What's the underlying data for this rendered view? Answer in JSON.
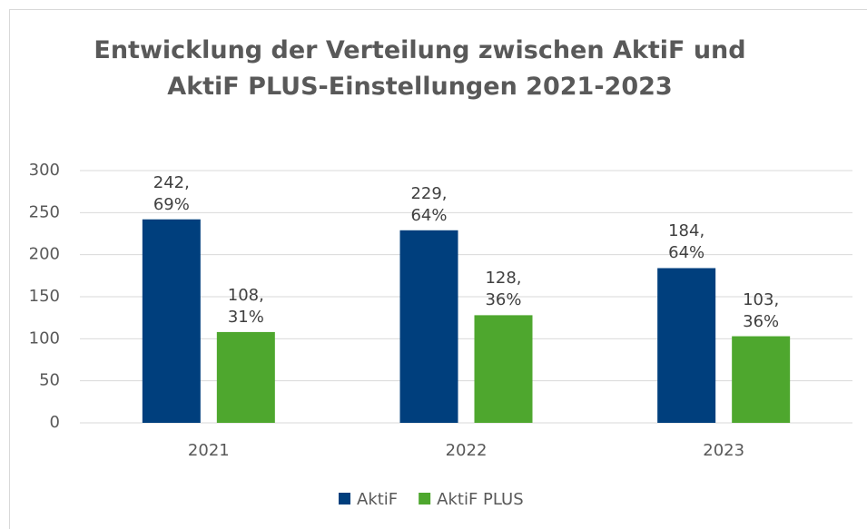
{
  "chart_data": {
    "type": "bar",
    "title": "Entwicklung der Verteilung zwischen AktiF und AktiF PLUS-Einstellungen 2021-2023",
    "categories": [
      "2021",
      "2022",
      "2023"
    ],
    "series": [
      {
        "name": "AktiF",
        "color": "#003f7d",
        "values": [
          242,
          229,
          184
        ],
        "value_labels": [
          "242,\n69%",
          "229,\n64%",
          "184,\n64%"
        ]
      },
      {
        "name": "AktiF PLUS",
        "color": "#4ea72e",
        "values": [
          108,
          128,
          103
        ],
        "value_labels": [
          "108,\n31%",
          "128,\n36%",
          "103,\n36%"
        ]
      }
    ],
    "ylim": [
      0,
      300
    ],
    "yticks": [
      0,
      50,
      100,
      150,
      200,
      250,
      300
    ],
    "grid": true,
    "legend": "bottom"
  }
}
